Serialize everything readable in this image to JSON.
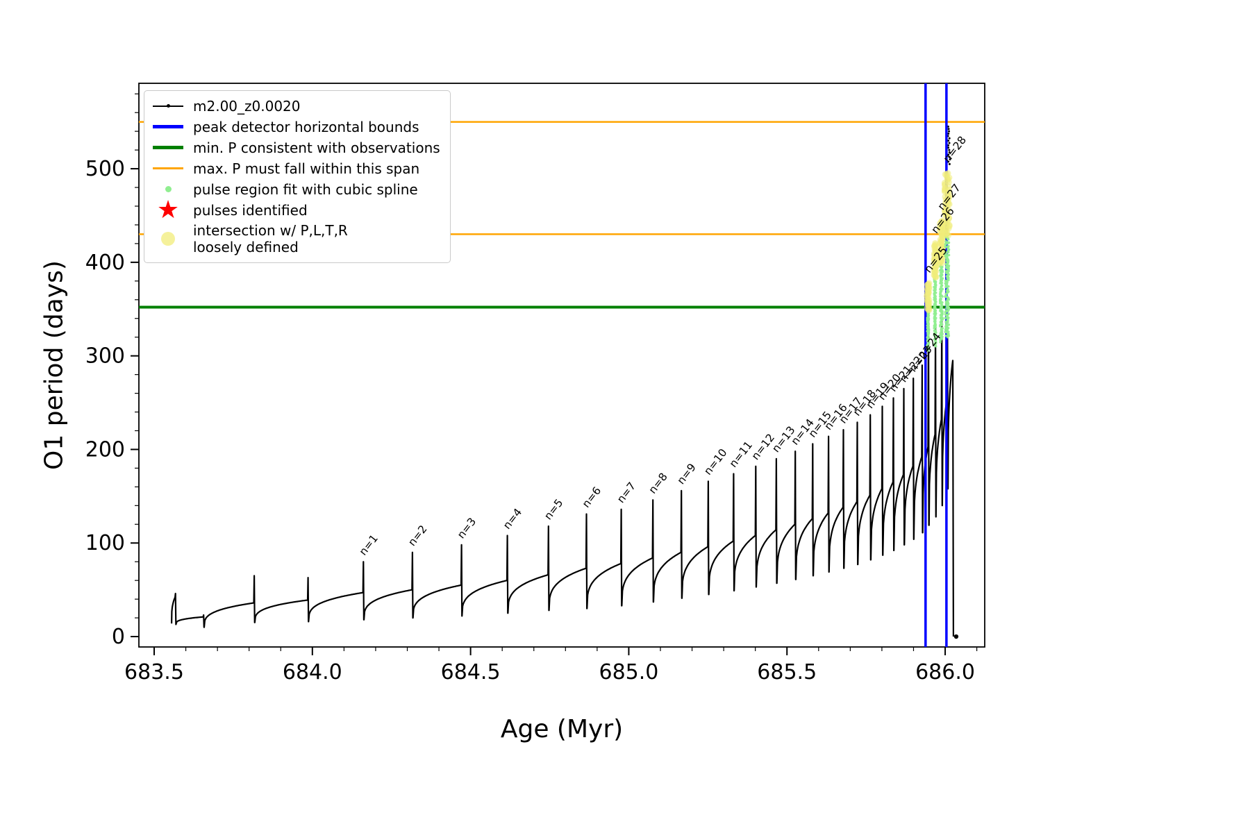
{
  "axes": {
    "xlabel": "Age (Myr)",
    "ylabel": "O1 period (days)",
    "xlim": [
      683.4517,
      686.125
    ],
    "ylim": [
      -11.1,
      591.3
    ],
    "xticks": [
      683.5,
      684.0,
      684.5,
      685.0,
      685.5,
      686.0
    ],
    "yticks": [
      0,
      100,
      200,
      300,
      400,
      500
    ],
    "x_minor_step": 0.1,
    "y_minor_step": 20
  },
  "legend": {
    "entries": [
      {
        "label": "m2.00_z0.0020",
        "marker": "line-dot",
        "color": "#000000"
      },
      {
        "label": "peak detector horizontal bounds",
        "marker": "thick-line",
        "color": "#0000ff"
      },
      {
        "label": "min. P consistent with observations",
        "marker": "thick-line",
        "color": "#008000"
      },
      {
        "label": "max. P must fall within this span",
        "marker": "line",
        "color": "#ffa500"
      },
      {
        "label": "pulse region fit with cubic spline",
        "marker": "dot",
        "color": "#90ee90"
      },
      {
        "label": "pulses identified",
        "marker": "star",
        "color": "#ff0000"
      },
      {
        "label": "intersection w/ P,L,T,R\nloosely defined",
        "marker": "big-dot",
        "color": "#f1ec7a"
      }
    ]
  },
  "chart_data": {
    "type": "line",
    "title": "",
    "series_name": "m2.00_z0.0020",
    "xlabel": "Age (Myr)",
    "ylabel": "O1 period (days)",
    "xlim": [
      683.4517,
      686.125
    ],
    "ylim": [
      -11.1,
      591.3
    ],
    "hlines": [
      {
        "y": 550,
        "color": "#ffa500",
        "lw": 2.5,
        "label": "max. P must fall within this span"
      },
      {
        "y": 430,
        "color": "#ffa500",
        "lw": 2.5,
        "label": "max. P must fall within this span"
      },
      {
        "y": 352,
        "color": "#008000",
        "lw": 4,
        "label": "min. P consistent with observations"
      }
    ],
    "vlines": [
      {
        "x": 685.938,
        "color": "#0000ff",
        "lw": 3.5,
        "label": "peak detector horizontal bounds"
      },
      {
        "x": 686.004,
        "color": "#0000ff",
        "lw": 3.5,
        "label": "peak detector horizontal bounds"
      }
    ],
    "segments": [
      {
        "x0": 683.555,
        "y0": 14,
        "x1": 683.566,
        "y1": 42,
        "peak": 46,
        "n": null
      },
      {
        "x0": 683.569,
        "y0": 13,
        "x1": 683.655,
        "y1": 21,
        "peak": 23,
        "n": null
      },
      {
        "x0": 683.658,
        "y0": 10,
        "x1": 683.815,
        "y1": 36,
        "peak": 65,
        "n": null
      },
      {
        "x0": 683.818,
        "y0": 15,
        "x1": 683.985,
        "y1": 39,
        "peak": 63,
        "n": null
      },
      {
        "x0": 683.988,
        "y0": 16,
        "x1": 684.16,
        "y1": 47,
        "peak": 80,
        "n": 1
      },
      {
        "x0": 684.163,
        "y0": 18,
        "x1": 684.315,
        "y1": 50,
        "peak": 90,
        "n": 2
      },
      {
        "x0": 684.318,
        "y0": 20,
        "x1": 684.47,
        "y1": 55,
        "peak": 98,
        "n": 3
      },
      {
        "x0": 684.473,
        "y0": 22,
        "x1": 684.615,
        "y1": 60,
        "peak": 108,
        "n": 4
      },
      {
        "x0": 684.618,
        "y0": 25,
        "x1": 684.745,
        "y1": 66,
        "peak": 118,
        "n": 5
      },
      {
        "x0": 684.748,
        "y0": 28,
        "x1": 684.865,
        "y1": 73,
        "peak": 131,
        "n": 6
      },
      {
        "x0": 684.868,
        "y0": 30,
        "x1": 684.975,
        "y1": 78,
        "peak": 136,
        "n": 7
      },
      {
        "x0": 684.978,
        "y0": 33,
        "x1": 685.075,
        "y1": 84,
        "peak": 146,
        "n": 8
      },
      {
        "x0": 685.078,
        "y0": 37,
        "x1": 685.165,
        "y1": 90,
        "peak": 156,
        "n": 9
      },
      {
        "x0": 685.168,
        "y0": 41,
        "x1": 685.25,
        "y1": 96,
        "peak": 166,
        "n": 10
      },
      {
        "x0": 685.253,
        "y0": 45,
        "x1": 685.33,
        "y1": 102,
        "peak": 174,
        "n": 11
      },
      {
        "x0": 685.333,
        "y0": 49,
        "x1": 685.4,
        "y1": 108,
        "peak": 182,
        "n": 12
      },
      {
        "x0": 685.403,
        "y0": 53,
        "x1": 685.465,
        "y1": 114,
        "peak": 190,
        "n": 13
      },
      {
        "x0": 685.468,
        "y0": 57,
        "x1": 685.525,
        "y1": 120,
        "peak": 198,
        "n": 14
      },
      {
        "x0": 685.528,
        "y0": 61,
        "x1": 685.58,
        "y1": 126,
        "peak": 206,
        "n": 15
      },
      {
        "x0": 685.583,
        "y0": 65,
        "x1": 685.63,
        "y1": 132,
        "peak": 214,
        "n": 16
      },
      {
        "x0": 685.633,
        "y0": 69,
        "x1": 685.677,
        "y1": 138,
        "peak": 221,
        "n": 17
      },
      {
        "x0": 685.68,
        "y0": 73,
        "x1": 685.721,
        "y1": 144,
        "peak": 229,
        "n": 18
      },
      {
        "x0": 685.724,
        "y0": 77,
        "x1": 685.762,
        "y1": 151,
        "peak": 237,
        "n": 19
      },
      {
        "x0": 685.765,
        "y0": 82,
        "x1": 685.8,
        "y1": 158,
        "peak": 246,
        "n": 20
      },
      {
        "x0": 685.803,
        "y0": 87,
        "x1": 685.835,
        "y1": 165,
        "peak": 255,
        "n": 21
      },
      {
        "x0": 685.838,
        "y0": 92,
        "x1": 685.868,
        "y1": 173,
        "peak": 265,
        "n": 22
      },
      {
        "x0": 685.871,
        "y0": 98,
        "x1": 685.898,
        "y1": 182,
        "peak": 276,
        "n": 23
      },
      {
        "x0": 685.901,
        "y0": 104,
        "x1": 685.926,
        "y1": 192,
        "peak": 290,
        "n": 24
      },
      {
        "x0": 685.929,
        "y0": 111,
        "x1": 685.946,
        "y1": 203,
        "peak": 345,
        "n": 25
      },
      {
        "x0": 685.949,
        "y0": 119,
        "x1": 685.968,
        "y1": 216,
        "peak": 330,
        "n": 26
      },
      {
        "x0": 685.971,
        "y0": 128,
        "x1": 685.988,
        "y1": 232,
        "peak": 340,
        "n": 27
      },
      {
        "x0": 685.991,
        "y0": 140,
        "x1": 686.006,
        "y1": 255,
        "peak": 320,
        "n": 28
      },
      {
        "x0": 686.009,
        "y0": 158,
        "x1": 686.024,
        "y1": 295,
        "peak": null,
        "n": null
      }
    ],
    "end": {
      "x": 686.026,
      "y": 0
    },
    "black_fragment": {
      "x": 686.012,
      "y0": 505,
      "y1": 545
    },
    "highlights": [
      {
        "n": 25,
        "x": 685.946,
        "green": [
          305,
          352
        ],
        "yellow": [
          348,
          378
        ],
        "w": 0.003
      },
      {
        "n": 26,
        "x": 685.968,
        "green": [
          310,
          388
        ],
        "yellow": [
          383,
          420
        ],
        "w": 0.003
      },
      {
        "n": 27,
        "x": 685.988,
        "green": [
          315,
          400
        ],
        "yellow": [
          398,
          445
        ],
        "w": 0.004
      },
      {
        "n": 28,
        "x": 686.006,
        "green": [
          320,
          432
        ],
        "yellow": [
          428,
          496
        ],
        "w": 0.006
      }
    ],
    "pulse_label_prefix": "n="
  }
}
